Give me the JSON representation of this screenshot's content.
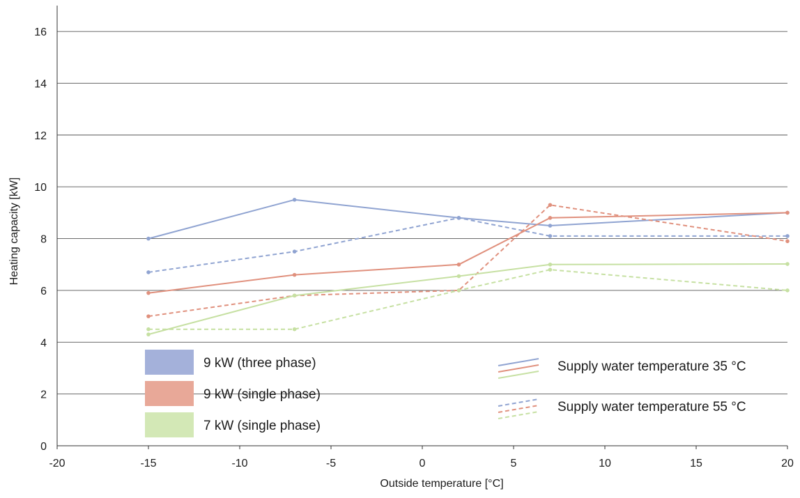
{
  "chart_data": {
    "type": "line",
    "xlabel": "Outside temperature [°C]",
    "ylabel": "Heating capacity [kW]",
    "xlim": [
      -20,
      20
    ],
    "ylim": [
      0,
      17
    ],
    "x_ticks": [
      -20,
      -15,
      -10,
      -5,
      0,
      5,
      10,
      15,
      20
    ],
    "y_ticks": [
      0,
      2,
      4,
      6,
      8,
      10,
      12,
      14,
      16
    ],
    "grid": "horizontal",
    "colors": {
      "three_phase_9kw": "#8fa3d1",
      "single_phase_9kw": "#e0907d",
      "single_phase_7kw": "#c6e0a2"
    },
    "legend_units": [
      {
        "label": "9 kW (three phase)",
        "swatch": "#a4b1da",
        "series": "three_phase_9kw"
      },
      {
        "label": "9 kW (single phase)",
        "swatch": "#e8a898",
        "series": "single_phase_9kw"
      },
      {
        "label": "7 kW (single phase)",
        "swatch": "#d3e8b6",
        "series": "single_phase_7kw"
      }
    ],
    "legend_styles": [
      {
        "label": "Supply water temperature 35 °C",
        "dash": "solid"
      },
      {
        "label": "Supply water temperature 55 °C",
        "dash": "dashed"
      }
    ],
    "series": [
      {
        "unit": "three_phase_9kw",
        "supply": "35",
        "dash": "solid",
        "x": [
          -15,
          -7,
          2,
          7,
          20
        ],
        "y": [
          8.0,
          9.5,
          8.8,
          8.5,
          9.0
        ]
      },
      {
        "unit": "three_phase_9kw",
        "supply": "55",
        "dash": "dashed",
        "x": [
          -15,
          -7,
          2,
          7,
          20
        ],
        "y": [
          6.7,
          7.5,
          8.8,
          8.1,
          8.1
        ]
      },
      {
        "unit": "single_phase_9kw",
        "supply": "35",
        "dash": "solid",
        "x": [
          -15,
          -7,
          2,
          7,
          20
        ],
        "y": [
          5.9,
          6.6,
          7.0,
          8.8,
          9.0
        ]
      },
      {
        "unit": "single_phase_9kw",
        "supply": "55",
        "dash": "dashed",
        "x": [
          -15,
          -7,
          2,
          7,
          20
        ],
        "y": [
          5.0,
          5.8,
          6.0,
          9.3,
          7.9
        ]
      },
      {
        "unit": "single_phase_7kw",
        "supply": "35",
        "dash": "solid",
        "x": [
          -15,
          -7,
          2,
          7,
          20
        ],
        "y": [
          4.3,
          5.8,
          6.55,
          7.0,
          7.02
        ]
      },
      {
        "unit": "single_phase_7kw",
        "supply": "55",
        "dash": "dashed",
        "x": [
          -15,
          -7,
          2,
          7,
          20
        ],
        "y": [
          4.5,
          4.5,
          6.0,
          6.8,
          6.0
        ]
      }
    ]
  }
}
